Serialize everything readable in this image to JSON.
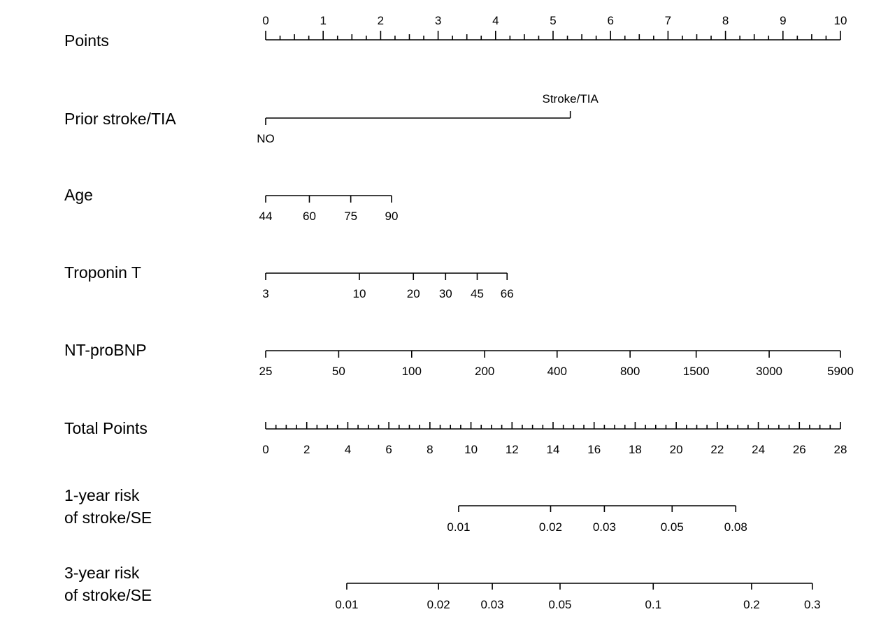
{
  "chart_data": {
    "type": "nomogram",
    "rows": [
      {
        "key": "points",
        "label_lines": [
          "Points"
        ],
        "kind": "points",
        "tick_labels": [
          "0",
          "1",
          "2",
          "3",
          "4",
          "5",
          "6",
          "7",
          "8",
          "9",
          "10"
        ],
        "tick_points": [
          0,
          1,
          2,
          3,
          4,
          5,
          6,
          7,
          8,
          9,
          10
        ],
        "minor_step": 0.25
      },
      {
        "key": "prior_stroke",
        "label_lines": [
          "Prior stroke/TIA"
        ],
        "kind": "categorical",
        "categories": [
          {
            "label": "NO",
            "points": 0
          },
          {
            "label": "Stroke/TIA",
            "points": 5.3
          }
        ]
      },
      {
        "key": "age",
        "label_lines": [
          "Age"
        ],
        "kind": "continuous",
        "ticks": [
          {
            "label": "44",
            "points": 0
          },
          {
            "label": "60",
            "points": 0.76
          },
          {
            "label": "75",
            "points": 1.48
          },
          {
            "label": "90",
            "points": 2.19
          }
        ]
      },
      {
        "key": "troponin",
        "label_lines": [
          "Troponin T"
        ],
        "kind": "continuous",
        "ticks": [
          {
            "label": "3",
            "points": 0
          },
          {
            "label": "10",
            "points": 1.63
          },
          {
            "label": "20",
            "points": 2.57
          },
          {
            "label": "30",
            "points": 3.13
          },
          {
            "label": "45",
            "points": 3.68
          },
          {
            "label": "66",
            "points": 4.2
          }
        ]
      },
      {
        "key": "ntprobnp",
        "label_lines": [
          "NT-proBNP"
        ],
        "kind": "continuous",
        "ticks": [
          {
            "label": "25",
            "points": 0
          },
          {
            "label": "50",
            "points": 1.27
          },
          {
            "label": "100",
            "points": 2.54
          },
          {
            "label": "200",
            "points": 3.81
          },
          {
            "label": "400",
            "points": 5.07
          },
          {
            "label": "800",
            "points": 6.34
          },
          {
            "label": "1500",
            "points": 7.49
          },
          {
            "label": "3000",
            "points": 8.76
          },
          {
            "label": "5900",
            "points": 10
          }
        ]
      },
      {
        "key": "total",
        "label_lines": [
          "Total Points"
        ],
        "kind": "total",
        "tick_labels": [
          "0",
          "2",
          "4",
          "6",
          "8",
          "10",
          "12",
          "14",
          "16",
          "18",
          "20",
          "22",
          "24",
          "26",
          "28"
        ],
        "tick_values": [
          0,
          2,
          4,
          6,
          8,
          10,
          12,
          14,
          16,
          18,
          20,
          22,
          24,
          26,
          28
        ],
        "minor_step": 0.5,
        "max": 28
      },
      {
        "key": "risk1",
        "label_lines": [
          "1-year risk",
          "of stroke/SE"
        ],
        "kind": "risk",
        "ticks": [
          {
            "label": "0.01",
            "total": 9.4
          },
          {
            "label": "0.02",
            "total": 13.88
          },
          {
            "label": "0.03",
            "total": 16.5
          },
          {
            "label": "0.05",
            "total": 19.8
          },
          {
            "label": "0.08",
            "total": 22.9
          }
        ]
      },
      {
        "key": "risk3",
        "label_lines": [
          "3-year risk",
          "of stroke/SE"
        ],
        "kind": "risk",
        "ticks": [
          {
            "label": "0.01",
            "total": 3.95
          },
          {
            "label": "0.02",
            "total": 8.42
          },
          {
            "label": "0.03",
            "total": 11.04
          },
          {
            "label": "0.05",
            "total": 14.34
          },
          {
            "label": "0.1",
            "total": 18.88
          },
          {
            "label": "0.2",
            "total": 23.67
          },
          {
            "label": "0.3",
            "total": 26.63
          }
        ]
      }
    ]
  }
}
